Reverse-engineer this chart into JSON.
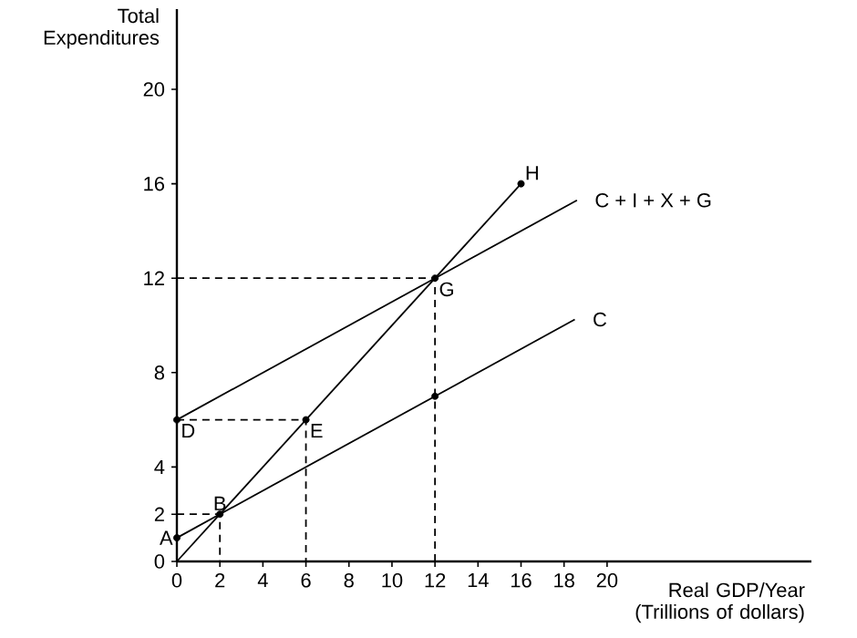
{
  "chart_data": {
    "type": "line",
    "xlabel": "Real GDP/Year (Trillions of dollars)",
    "ylabel": "Total Expenditures",
    "xlim": [
      0,
      29.5
    ],
    "ylim": [
      0,
      23.4
    ],
    "xticks": [
      0,
      2,
      4,
      6,
      8,
      10,
      12,
      14,
      16,
      18,
      20
    ],
    "yticks": [
      0,
      2,
      4,
      8,
      12,
      16,
      20
    ],
    "grid": false,
    "series": [
      {
        "color": "#000000",
        "x": [
          0,
          16
        ],
        "values": [
          0,
          16
        ]
      },
      {
        "name": "C + I + X + G",
        "color": "#000000",
        "x": [
          0,
          18.6
        ],
        "values": [
          6,
          15.3
        ]
      },
      {
        "name": "C",
        "color": "#000000",
        "x": [
          0,
          18.5
        ],
        "values": [
          1,
          10.25
        ]
      },
      {
        "type": "line",
        "line_style": "dashed",
        "color": "#000000",
        "x": [
          0,
          2,
          2
        ],
        "values": [
          2,
          2,
          0
        ]
      },
      {
        "type": "line",
        "line_style": "dashed",
        "color": "#000000",
        "x": [
          0,
          6,
          6
        ],
        "values": [
          6,
          6,
          0
        ]
      },
      {
        "type": "line",
        "line_style": "dashed",
        "color": "#000000",
        "x": [
          0,
          12,
          12
        ],
        "values": [
          12,
          12,
          0
        ]
      },
      {
        "type": "scatter",
        "color": "#000000",
        "x": [
          0,
          2,
          0,
          6,
          12,
          16,
          12
        ],
        "values": [
          1,
          2,
          6,
          6,
          12,
          16,
          7
        ]
      }
    ],
    "annotations": [
      {
        "text": "A",
        "x": 0,
        "y": 1
      },
      {
        "text": "B",
        "x": 2,
        "y": 2
      },
      {
        "text": "D",
        "x": 0,
        "y": 6
      },
      {
        "text": "E",
        "x": 6,
        "y": 6
      },
      {
        "text": "G",
        "x": 12,
        "y": 12
      },
      {
        "text": "H",
        "x": 16,
        "y": 16
      }
    ]
  }
}
